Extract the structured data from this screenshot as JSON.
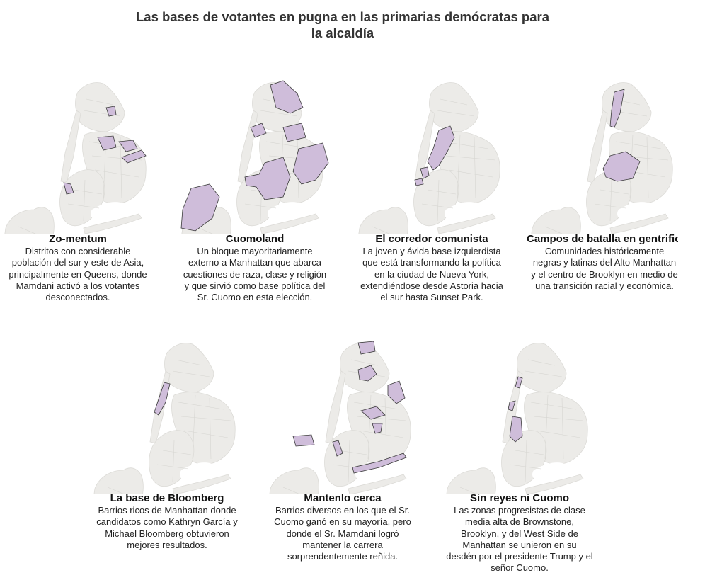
{
  "title": "Las bases de votantes en pugna en las primarias demócratas para la alcaldía",
  "colors": {
    "highlight": "#cfbdda",
    "land": "#ecebe8",
    "outline": "#3a3a3a"
  },
  "maps": [
    {
      "heading": "Zo-mentum",
      "lines": [
        "Distritos con considerable",
        "población del sur y este de Asia,",
        "principalmente en Queens, donde",
        "Mamdani activó a los votantes",
        "desconectados."
      ]
    },
    {
      "heading": "Cuomoland",
      "lines": [
        "Un bloque mayoritariamente",
        "externo a Manhattan que abarca",
        "cuestiones de raza, clase y religión",
        "y que sirvió como base política del",
        "Sr. Cuomo en esta elección."
      ]
    },
    {
      "heading": "El corredor comunista",
      "lines": [
        "La joven y ávida base izquierdista",
        "que está transformando la política",
        "en la ciudad de Nueva York,",
        "extendiéndose desde Astoria hacia",
        "el sur hasta Sunset Park."
      ]
    },
    {
      "heading": "Campos de batalla en gentrificación",
      "lines": [
        "Comunidades históricamente",
        "negras y latinas del Alto Manhattan",
        "y el centro de Brooklyn en medio de",
        "una transición racial y económica."
      ]
    },
    {
      "heading": "La base de Bloomberg",
      "lines": [
        "Barrios ricos de Manhattan donde",
        "candidatos como Kathryn García y",
        "Michael Bloomberg obtuvieron",
        "mejores resultados."
      ]
    },
    {
      "heading": "Mantenlo cerca",
      "lines": [
        "Barrios diversos en los que el Sr.",
        "Cuomo ganó en su mayoría, pero",
        "donde el Sr. Mamdani logró",
        "mantener la carrera",
        "sorprendentemente reñida."
      ]
    },
    {
      "heading": "Sin reyes ni Cuomo",
      "lines": [
        "Las zonas progresistas de clase",
        "media alta de Brownstone,",
        "Brooklyn, y del West Side de",
        "Manhattan se unieron en su",
        "desdén por el presidente Trump y el",
        "señor Cuomo."
      ]
    }
  ]
}
